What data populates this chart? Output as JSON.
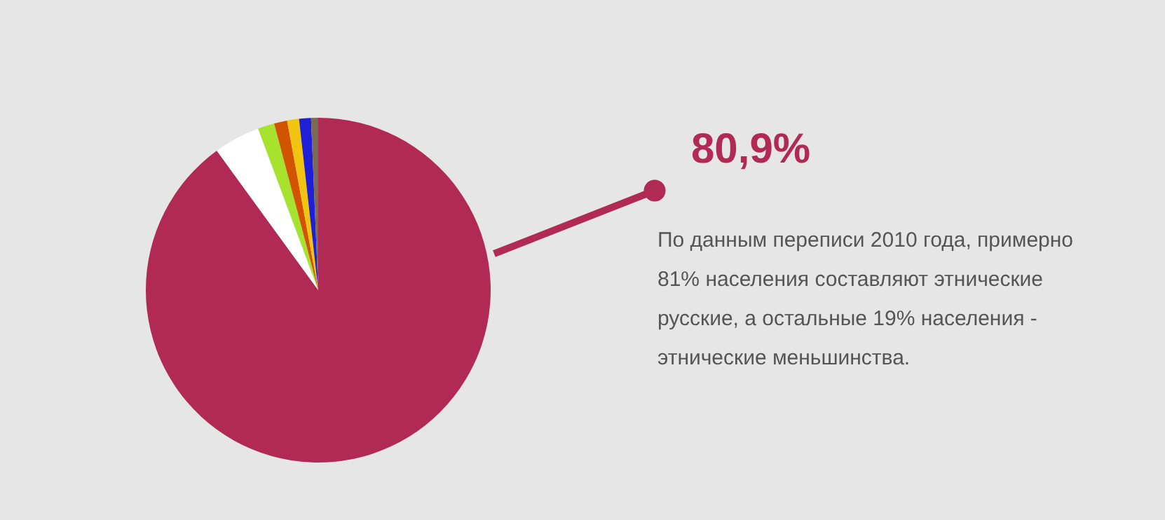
{
  "chart_data": {
    "type": "pie",
    "categories": [
      null,
      null,
      null,
      null,
      null,
      null,
      null
    ],
    "values": [
      80.9,
      3.9,
      1.4,
      1.1,
      1.0,
      1.0,
      0.6
    ],
    "colors": [
      "#b02a55",
      "#ffffff",
      "#a6e22e",
      "#d35400",
      "#f1c40f",
      "#1f1fd6",
      "#7a6a55"
    ],
    "value_labels": [
      "80,9%",
      null,
      null,
      null,
      null,
      null,
      null
    ],
    "annotations": [
      "По данным переписи 2010 года, примерно 81% населения составляют этнические русские, а остальные 19% населения - этнические меньшинства."
    ]
  }
}
